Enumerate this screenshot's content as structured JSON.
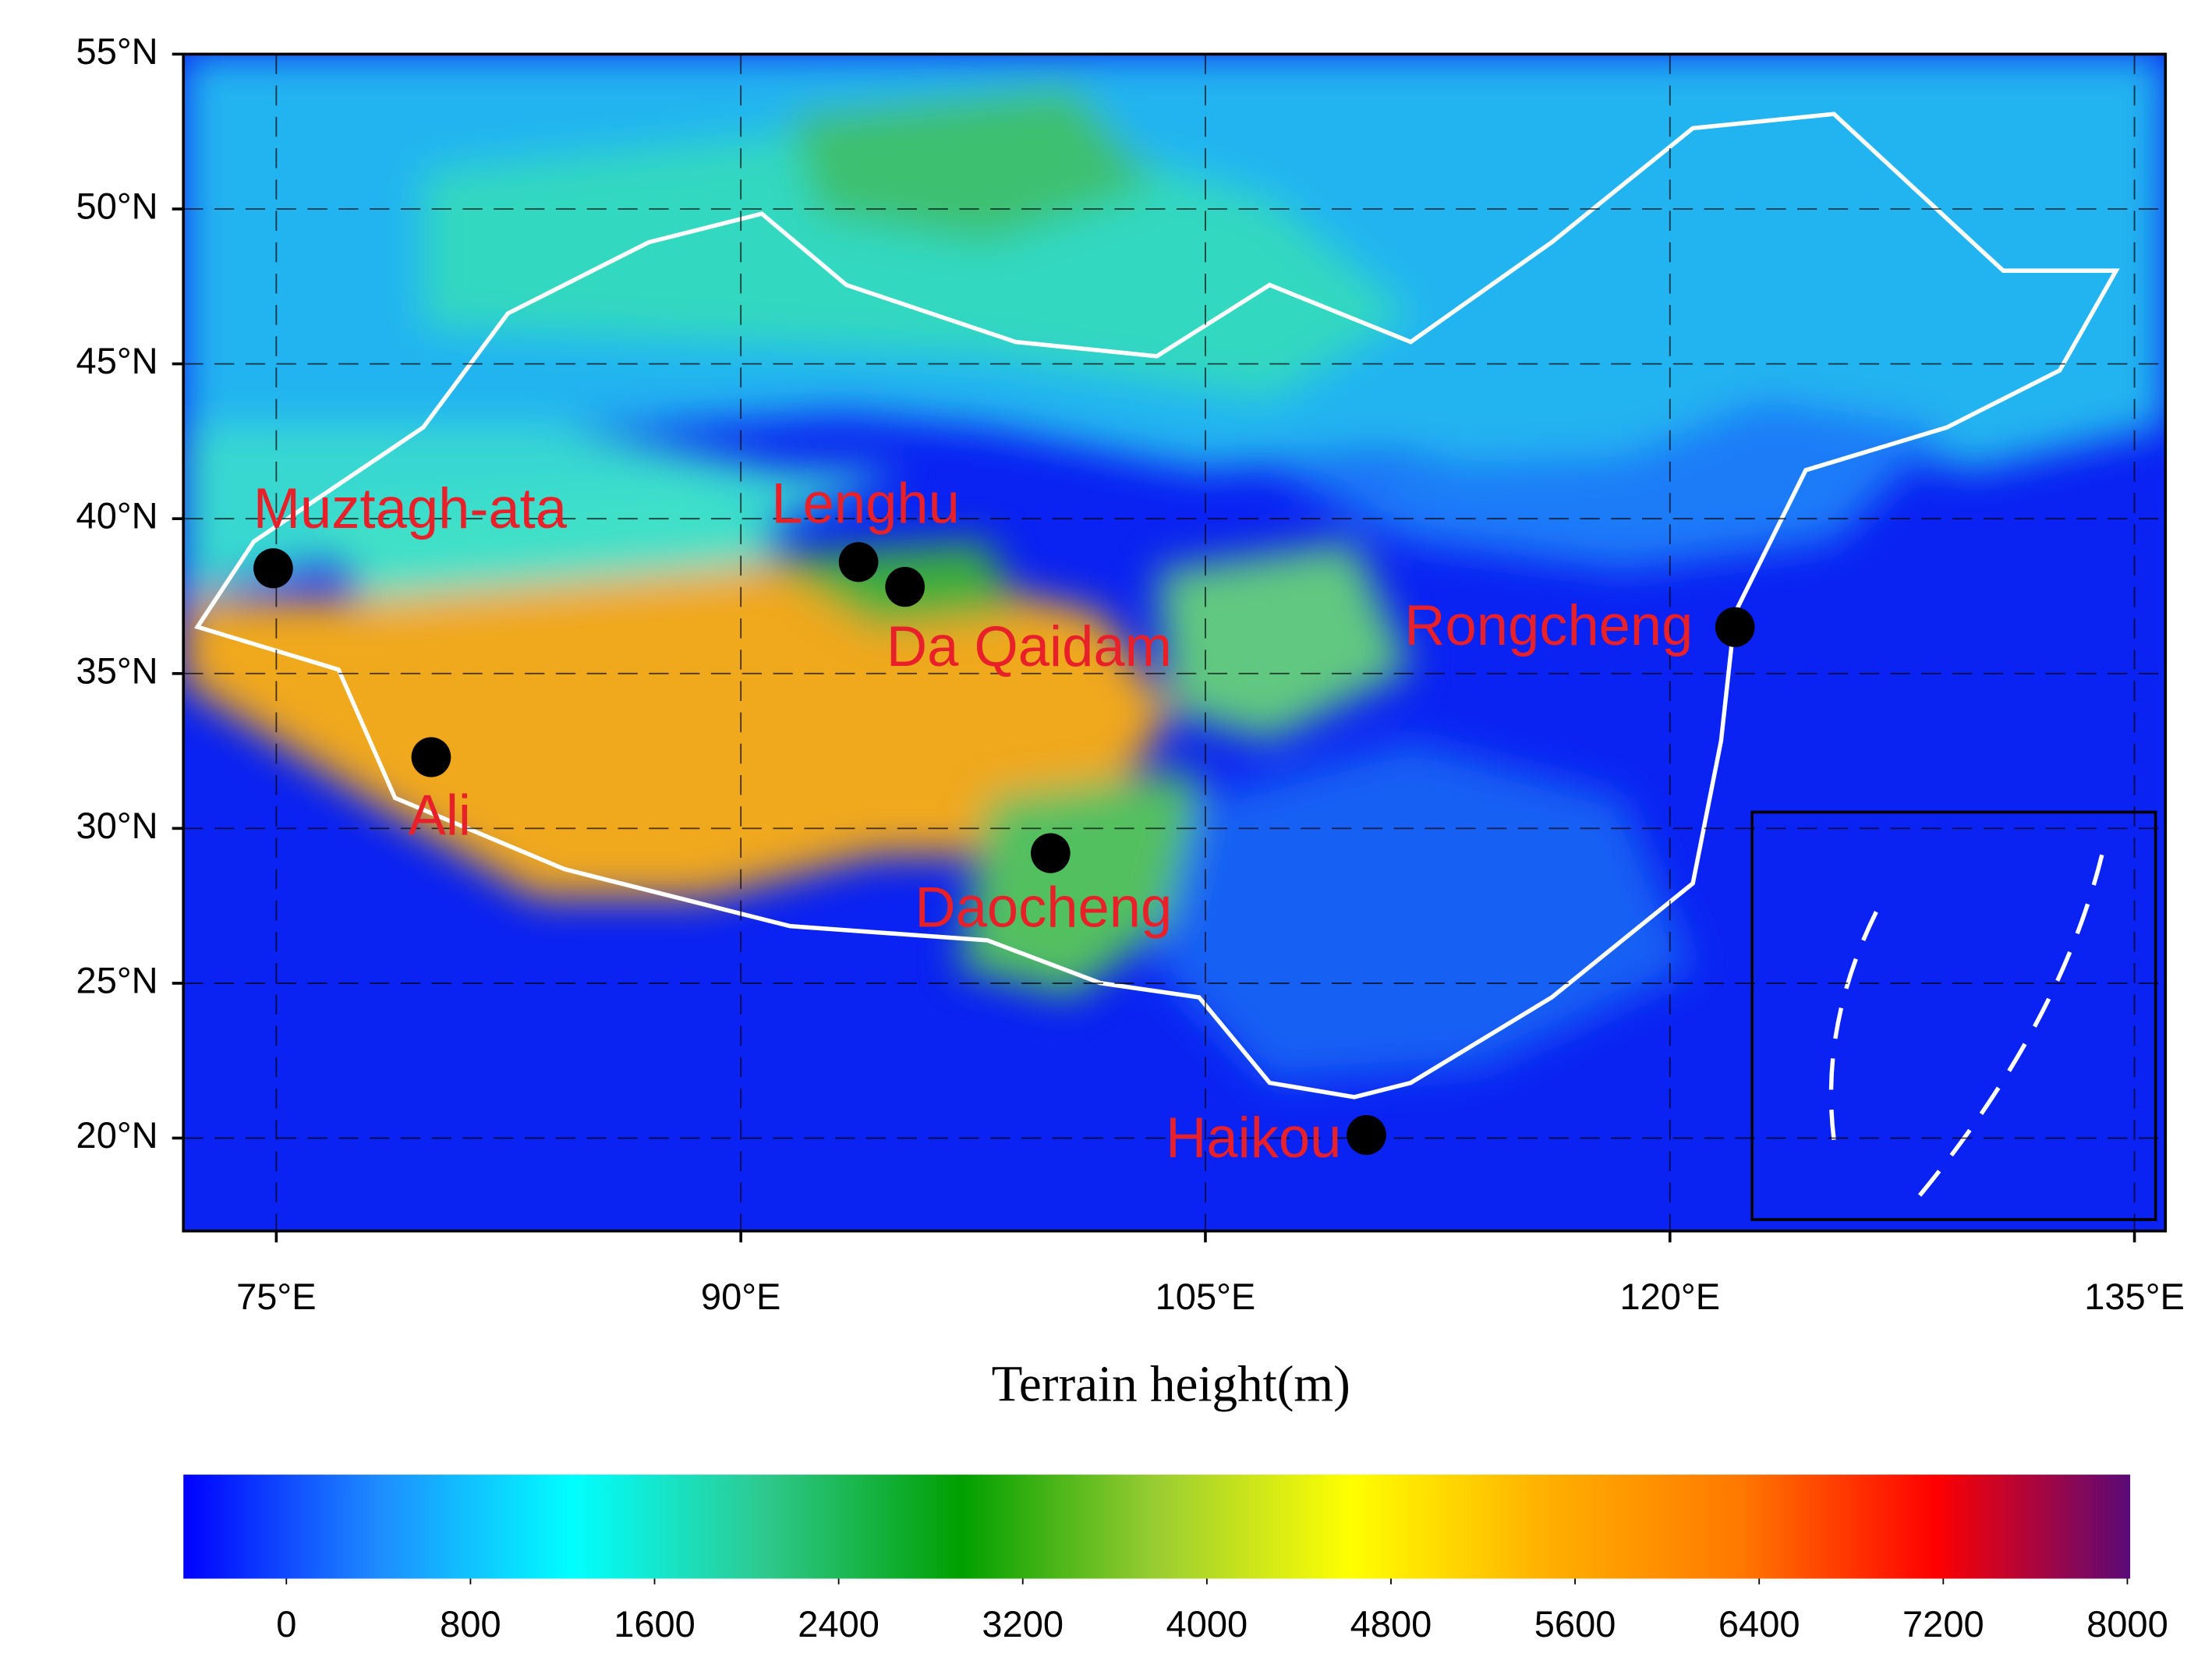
{
  "map": {
    "xlim": [
      72,
      136
    ],
    "ylim": [
      17,
      55
    ],
    "xticks": [
      {
        "value": 75,
        "label": "75°E"
      },
      {
        "value": 90,
        "label": "90°E"
      },
      {
        "value": 105,
        "label": "105°E"
      },
      {
        "value": 120,
        "label": "120°E"
      },
      {
        "value": 135,
        "label": "135°E"
      }
    ],
    "yticks": [
      {
        "value": 20,
        "label": "20°N"
      },
      {
        "value": 25,
        "label": "25°N"
      },
      {
        "value": 30,
        "label": "30°N"
      },
      {
        "value": 35,
        "label": "35°N"
      },
      {
        "value": 40,
        "label": "40°N"
      },
      {
        "value": 45,
        "label": "45°N"
      },
      {
        "value": 50,
        "label": "50°N"
      },
      {
        "value": 55,
        "label": "55°N"
      }
    ],
    "grid": true,
    "stations": [
      {
        "name": "Muztagh-ata",
        "lon": 74.9,
        "lat": 38.4
      },
      {
        "name": "Ali",
        "lon": 80.0,
        "lat": 32.3
      },
      {
        "name": "Lenghu",
        "lon": 93.8,
        "lat": 38.6
      },
      {
        "name": "Da Qaidam",
        "lon": 95.3,
        "lat": 37.8
      },
      {
        "name": "Daocheng",
        "lon": 100.0,
        "lat": 29.2
      },
      {
        "name": "Rongcheng",
        "lon": 122.1,
        "lat": 36.5
      },
      {
        "name": "Haikou",
        "lon": 110.2,
        "lat": 20.1
      }
    ],
    "station_color": "#000000",
    "label_color": "#e8202a",
    "axis_title": "Terrain height(m)",
    "colorbar": {
      "ticks": [
        0,
        800,
        1600,
        2400,
        3200,
        4000,
        4800,
        5600,
        6400,
        7200,
        8000
      ],
      "colormap": [
        "#0000ff",
        "#1e8cff",
        "#00ffff",
        "#2ec88c",
        "#00a000",
        "#9acd32",
        "#ffff00",
        "#ffb000",
        "#ff7800",
        "#ff0000",
        "#5a0a78"
      ]
    }
  }
}
